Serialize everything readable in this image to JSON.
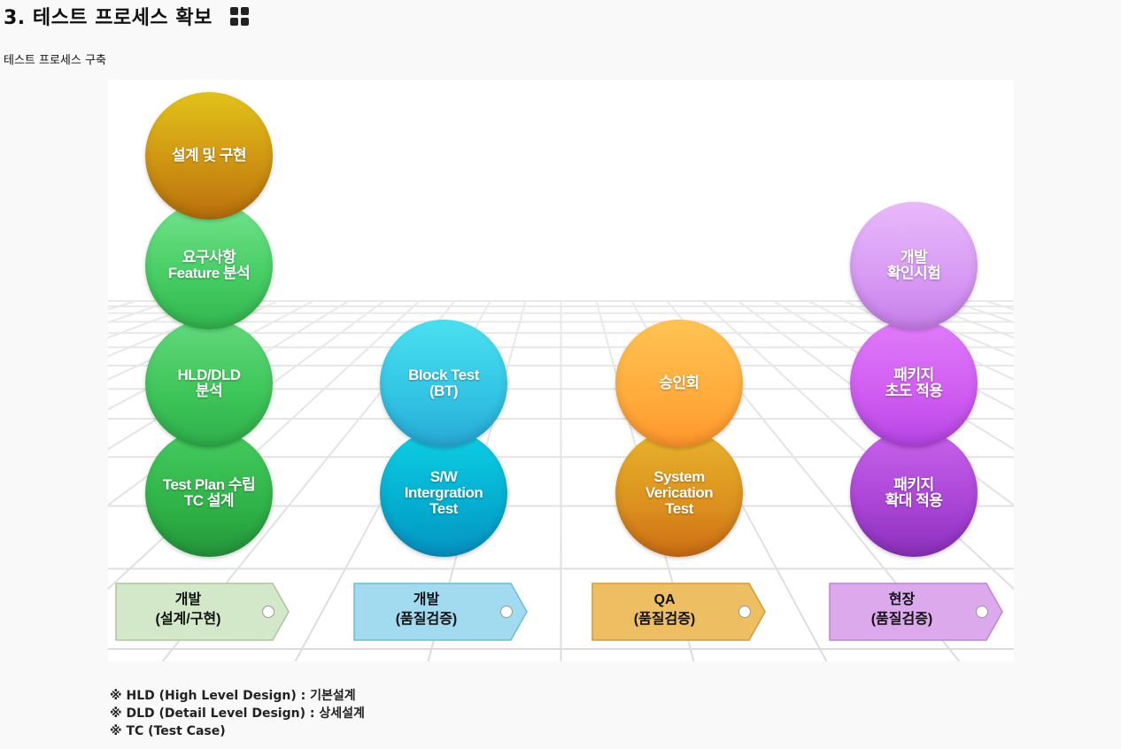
{
  "page": {
    "title": "3. 테스트 프로세스 확보",
    "subtitle": "테스트 프로세스 구축",
    "title_icon": "grid-icon"
  },
  "diagram": {
    "columns": [
      {
        "circles": [
          {
            "label": "설계 및 구현",
            "color": "#cf9512"
          },
          {
            "label": "요구사항\nFeature 분석",
            "color": "#45cc62"
          },
          {
            "label": "HLD/DLD\n분석",
            "color": "#3dc459"
          },
          {
            "label": "Test Plan 수립\nTC 설계",
            "color": "#2fb347"
          }
        ],
        "stage": {
          "label": "개발\n(설계/구현)",
          "color": "#cfe6c4"
        }
      },
      {
        "circles": [
          {
            "label": "Block Test\n(BT)",
            "color": "#32c4e4"
          },
          {
            "label": "S/W\nIntergration\nTest",
            "color": "#04adcf"
          }
        ],
        "stage": {
          "label": "개발\n(품질검증)",
          "color": "#9ed9ee"
        }
      },
      {
        "circles": [
          {
            "label": "승인회",
            "color": "#ffac3c"
          },
          {
            "label": "System\nVerication\nTest",
            "color": "#dc901e"
          }
        ],
        "stage": {
          "label": "QA\n(품질검증)",
          "color": "#ecbd60"
        }
      },
      {
        "circles": [
          {
            "label": "개발\n확인시험",
            "color": "#d79af3"
          },
          {
            "label": "패키지\n초도 적용",
            "color": "#cf5cf1"
          },
          {
            "label": "패키지\n확대 적용",
            "color": "#aa44d6"
          }
        ],
        "stage": {
          "label": "현장\n(품질검증)",
          "color": "#d7a6ea"
        }
      }
    ]
  },
  "notes": [
    "※ HLD (High Level Design) : 기본설계",
    "※ DLD (Detail Level Design) : 상세설계",
    "※ TC (Test Case)"
  ]
}
